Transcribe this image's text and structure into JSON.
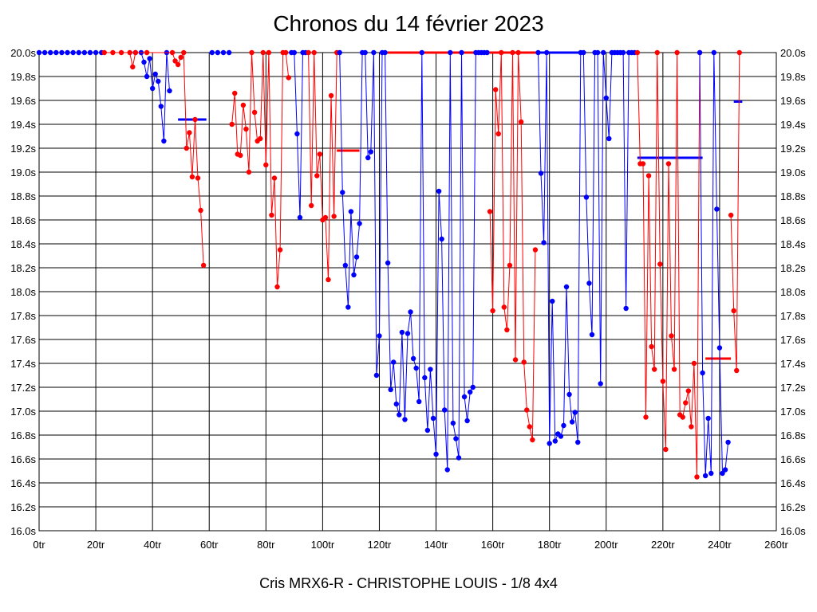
{
  "chart_data": {
    "type": "line",
    "title": "Chronos du 14 février 2023",
    "footer": "Cris MRX6-R - CHRISTOPHE LOUIS - 1/8 4x4",
    "xlabel": "",
    "ylabel": "",
    "xlim": [
      0,
      260
    ],
    "ylim": [
      16.0,
      20.0
    ],
    "x_tick_labels": [
      "0tr",
      "20tr",
      "40tr",
      "60tr",
      "80tr",
      "100tr",
      "120tr",
      "140tr",
      "160tr",
      "180tr",
      "200tr",
      "220tr",
      "240tr",
      "260tr"
    ],
    "x_tick_values": [
      0,
      20,
      40,
      60,
      80,
      100,
      120,
      140,
      160,
      180,
      200,
      220,
      240,
      260
    ],
    "y_tick_labels": [
      "16.0s",
      "16.2s",
      "16.4s",
      "16.6s",
      "16.8s",
      "17.0s",
      "17.2s",
      "17.4s",
      "17.6s",
      "17.8s",
      "18.0s",
      "18.2s",
      "18.4s",
      "18.6s",
      "18.8s",
      "19.0s",
      "19.2s",
      "19.4s",
      "19.6s",
      "19.8s",
      "20.0s"
    ],
    "y_tick_values": [
      16.0,
      16.2,
      16.4,
      16.6,
      16.8,
      17.0,
      17.2,
      17.4,
      17.6,
      17.8,
      18.0,
      18.2,
      18.4,
      18.6,
      18.8,
      19.0,
      19.2,
      19.4,
      19.6,
      19.8,
      20.0
    ],
    "grid": true,
    "colors": {
      "blue": "#0000ff",
      "red": "#ff0000",
      "grid": "#000000"
    },
    "series": [
      {
        "color": "#0000ff",
        "points": [
          [
            0,
            20.0
          ],
          [
            2,
            20.0
          ],
          [
            4,
            20.0
          ],
          [
            6,
            20.0
          ],
          [
            8,
            20.0
          ],
          [
            10,
            20.0
          ],
          [
            12,
            20.0
          ],
          [
            14,
            20.0
          ],
          [
            16,
            20.0
          ],
          [
            18,
            20.0
          ],
          [
            20,
            20.0
          ],
          [
            22,
            20.0
          ],
          [
            34,
            20.0
          ],
          [
            36,
            20.0
          ],
          [
            37,
            19.92
          ],
          [
            38,
            19.8
          ],
          [
            39,
            19.95
          ],
          [
            40,
            19.7
          ],
          [
            41,
            19.82
          ],
          [
            42,
            19.76
          ],
          [
            43,
            19.55
          ],
          [
            44,
            19.26
          ],
          [
            45,
            20.0
          ],
          [
            46,
            19.68
          ]
        ]
      },
      {
        "color": "#ff0000",
        "points": [
          [
            23,
            20.0
          ],
          [
            26,
            20.0
          ],
          [
            29,
            20.0
          ],
          [
            32,
            20.0
          ],
          [
            33,
            19.88
          ],
          [
            34,
            20.0
          ],
          [
            38,
            20.0
          ],
          [
            47,
            20.0
          ],
          [
            48,
            19.93
          ],
          [
            49,
            19.9
          ],
          [
            50,
            19.96
          ],
          [
            51,
            20.0
          ],
          [
            52,
            19.2
          ],
          [
            53,
            19.33
          ],
          [
            54,
            18.96
          ],
          [
            55,
            19.44
          ],
          [
            56,
            18.95
          ],
          [
            57,
            18.68
          ],
          [
            58,
            18.22
          ]
        ]
      },
      {
        "color": "#0000ff",
        "points": [
          [
            61,
            20.0
          ],
          [
            63,
            20.0
          ],
          [
            65,
            20.0
          ],
          [
            67,
            20.0
          ]
        ]
      },
      {
        "color": "#ff0000",
        "points": [
          [
            68,
            19.4
          ],
          [
            69,
            19.66
          ],
          [
            70,
            19.15
          ],
          [
            71,
            19.14
          ],
          [
            72,
            19.56
          ],
          [
            73,
            19.36
          ],
          [
            74,
            19.0
          ],
          [
            75,
            20.0
          ],
          [
            76,
            19.5
          ],
          [
            77,
            19.26
          ],
          [
            78,
            19.28
          ],
          [
            79,
            20.0
          ],
          [
            80,
            19.06
          ],
          [
            81,
            20.0
          ],
          [
            82,
            18.64
          ],
          [
            83,
            18.95
          ],
          [
            84,
            18.04
          ],
          [
            85,
            18.35
          ],
          [
            86,
            20.0
          ],
          [
            87,
            20.0
          ],
          [
            88,
            19.79
          ]
        ]
      },
      {
        "color": "#0000ff",
        "points": [
          [
            89,
            20.0
          ],
          [
            90,
            20.0
          ],
          [
            91,
            19.32
          ],
          [
            92,
            18.62
          ],
          [
            93,
            20.0
          ],
          [
            94,
            20.0
          ]
        ]
      },
      {
        "color": "#ff0000",
        "points": [
          [
            95,
            20.0
          ],
          [
            96,
            18.72
          ],
          [
            97,
            20.0
          ],
          [
            98,
            18.97
          ],
          [
            99,
            19.15
          ],
          [
            100,
            18.6
          ],
          [
            101,
            18.62
          ],
          [
            102,
            18.1
          ],
          [
            103,
            19.64
          ],
          [
            104,
            18.63
          ],
          [
            105,
            20.0
          ]
        ]
      },
      {
        "color": "#0000ff",
        "points": [
          [
            106,
            20.0
          ],
          [
            107,
            18.83
          ],
          [
            108,
            18.22
          ],
          [
            109,
            17.87
          ],
          [
            110,
            18.67
          ],
          [
            111,
            18.14
          ],
          [
            112,
            18.29
          ],
          [
            113,
            18.57
          ],
          [
            114,
            20.0
          ],
          [
            115,
            20.0
          ],
          [
            116,
            19.12
          ],
          [
            117,
            19.17
          ],
          [
            118,
            20.0
          ],
          [
            119,
            17.3
          ],
          [
            120,
            17.63
          ],
          [
            121,
            20.0
          ],
          [
            122,
            20.0
          ],
          [
            123,
            18.24
          ],
          [
            124,
            17.18
          ],
          [
            125,
            17.41
          ],
          [
            126,
            17.06
          ],
          [
            127,
            16.97
          ],
          [
            128,
            17.66
          ],
          [
            129,
            16.93
          ],
          [
            130,
            17.65
          ],
          [
            131,
            17.83
          ],
          [
            132,
            17.44
          ],
          [
            133,
            17.36
          ],
          [
            134,
            17.08
          ],
          [
            135,
            20.0
          ],
          [
            136,
            17.28
          ],
          [
            137,
            16.84
          ],
          [
            138,
            17.35
          ],
          [
            139,
            16.94
          ],
          [
            140,
            16.64
          ],
          [
            141,
            18.84
          ],
          [
            142,
            18.44
          ],
          [
            143,
            17.01
          ],
          [
            144,
            16.51
          ],
          [
            145,
            20.0
          ],
          [
            146,
            16.9
          ],
          [
            147,
            16.77
          ],
          [
            148,
            16.61
          ],
          [
            149,
            20.0
          ],
          [
            150,
            17.12
          ],
          [
            151,
            16.92
          ],
          [
            152,
            17.16
          ],
          [
            153,
            17.2
          ],
          [
            154,
            20.0
          ],
          [
            155,
            20.0
          ],
          [
            156,
            20.0
          ],
          [
            157,
            20.0
          ],
          [
            158,
            20.0
          ]
        ]
      },
      {
        "color": "#ff0000",
        "points": [
          [
            159,
            18.67
          ],
          [
            160,
            17.84
          ],
          [
            161,
            19.69
          ],
          [
            162,
            19.32
          ],
          [
            163,
            20.0
          ],
          [
            164,
            17.87
          ],
          [
            165,
            17.68
          ],
          [
            166,
            18.22
          ],
          [
            167,
            20.0
          ],
          [
            168,
            17.43
          ],
          [
            169,
            20.0
          ],
          [
            170,
            19.42
          ],
          [
            171,
            17.41
          ],
          [
            172,
            17.01
          ],
          [
            173,
            16.87
          ],
          [
            174,
            16.76
          ],
          [
            175,
            18.35
          ]
        ]
      },
      {
        "color": "#0000ff",
        "points": [
          [
            176,
            20.0
          ],
          [
            177,
            18.99
          ],
          [
            178,
            18.41
          ],
          [
            179,
            20.0
          ],
          [
            180,
            16.73
          ],
          [
            181,
            17.92
          ],
          [
            182,
            16.75
          ],
          [
            183,
            16.81
          ],
          [
            184,
            16.79
          ],
          [
            185,
            16.88
          ],
          [
            186,
            18.04
          ],
          [
            187,
            17.14
          ],
          [
            188,
            16.91
          ],
          [
            189,
            16.99
          ],
          [
            190,
            16.74
          ],
          [
            191,
            20.0
          ],
          [
            192,
            20.0
          ],
          [
            193,
            18.79
          ],
          [
            194,
            18.07
          ],
          [
            195,
            17.64
          ],
          [
            196,
            20.0
          ],
          [
            197,
            20.0
          ],
          [
            198,
            17.23
          ],
          [
            199,
            20.0
          ],
          [
            200,
            19.62
          ],
          [
            201,
            19.28
          ],
          [
            202,
            20.0
          ],
          [
            203,
            20.0
          ],
          [
            204,
            20.0
          ],
          [
            205,
            20.0
          ],
          [
            206,
            20.0
          ],
          [
            207,
            17.86
          ],
          [
            208,
            20.0
          ],
          [
            209,
            20.0
          ],
          [
            210,
            20.0
          ]
        ]
      },
      {
        "color": "#ff0000",
        "points": [
          [
            211,
            20.0
          ],
          [
            212,
            19.07
          ],
          [
            213,
            19.07
          ],
          [
            214,
            16.95
          ],
          [
            215,
            18.97
          ],
          [
            216,
            17.54
          ],
          [
            217,
            17.35
          ],
          [
            218,
            20.0
          ],
          [
            219,
            18.23
          ],
          [
            220,
            17.25
          ],
          [
            221,
            16.68
          ],
          [
            222,
            19.07
          ],
          [
            223,
            17.63
          ],
          [
            224,
            17.35
          ],
          [
            225,
            20.0
          ],
          [
            226,
            16.97
          ],
          [
            227,
            16.95
          ],
          [
            228,
            17.07
          ],
          [
            229,
            17.17
          ],
          [
            230,
            16.87
          ],
          [
            231,
            17.4
          ],
          [
            232,
            16.45
          ],
          [
            233,
            20.0
          ]
        ]
      },
      {
        "color": "#0000ff",
        "points": [
          [
            233,
            20.0
          ],
          [
            234,
            17.32
          ],
          [
            235,
            16.46
          ],
          [
            236,
            16.94
          ],
          [
            237,
            16.48
          ],
          [
            238,
            20.0
          ],
          [
            239,
            18.69
          ],
          [
            240,
            17.53
          ],
          [
            241,
            16.48
          ],
          [
            242,
            16.51
          ],
          [
            243,
            16.74
          ]
        ]
      },
      {
        "color": "#ff0000",
        "points": [
          [
            244,
            18.64
          ],
          [
            245,
            17.84
          ],
          [
            246,
            17.34
          ],
          [
            247,
            20.0
          ]
        ]
      }
    ],
    "average_lines": [
      {
        "color": "#0000ff",
        "x": [
          49,
          59
        ],
        "y": 19.44
      },
      {
        "color": "#ff0000",
        "x": [
          105,
          113
        ],
        "y": 19.18
      },
      {
        "color": "#ff0000",
        "x": [
          122,
          176
        ],
        "y": 20.0
      },
      {
        "color": "#0000ff",
        "x": [
          176,
          192
        ],
        "y": 20.0
      },
      {
        "color": "#0000ff",
        "x": [
          211,
          234
        ],
        "y": 19.12
      },
      {
        "color": "#ff0000",
        "x": [
          235,
          244
        ],
        "y": 17.44
      },
      {
        "color": "#0000ff",
        "x": [
          245,
          248
        ],
        "y": 19.59
      }
    ]
  }
}
